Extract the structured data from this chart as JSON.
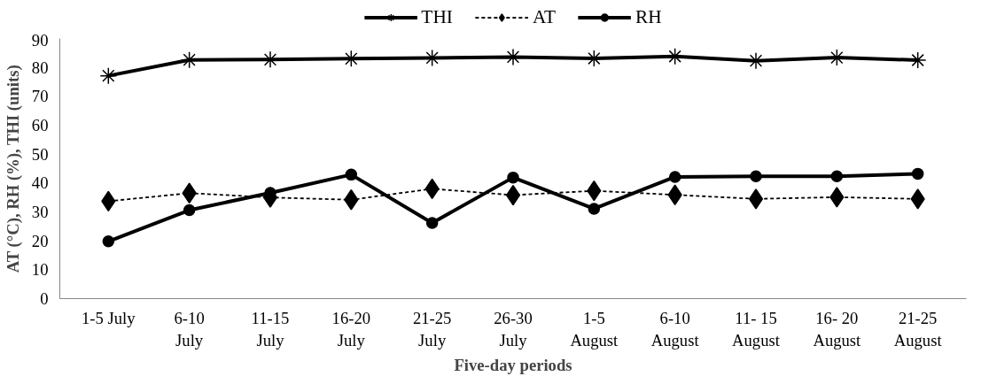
{
  "chart_data": {
    "type": "line",
    "xlabel": "Five-day periods",
    "ylabel": "AT (°C), RH (%), THI (units)",
    "categories": [
      "1-5 July",
      "6-10\nJuly",
      "11-15\nJuly",
      "16-20\nJuly",
      "21-25\nJuly",
      "26-30\nJuly",
      "1-5\nAugust",
      "6-10\nAugust",
      "11- 15\nAugust",
      "16- 20\nAugust",
      "21-25\nAugust"
    ],
    "ylim": [
      0,
      90
    ],
    "yticks": [
      0,
      10,
      20,
      30,
      40,
      50,
      60,
      70,
      80,
      90
    ],
    "grid": false,
    "legend": "top",
    "series": [
      {
        "name": "THI",
        "color": "#000000",
        "marker": "cross",
        "line_style": "solid",
        "values": [
          77.1,
          82.6,
          82.7,
          83.0,
          83.3,
          83.6,
          83.1,
          83.8,
          82.3,
          83.4,
          82.5
        ]
      },
      {
        "name": "AT",
        "color": "#000000",
        "marker": "diamond",
        "line_style": "dashed",
        "values": [
          33.7,
          36.5,
          35.0,
          34.2,
          38.0,
          35.8,
          37.3,
          35.9,
          34.5,
          35.1,
          34.5
        ]
      },
      {
        "name": "RH",
        "color": "#000000",
        "marker": "circle",
        "line_style": "solid",
        "values": [
          19.8,
          30.6,
          36.6,
          42.9,
          26.2,
          41.9,
          31.1,
          42.1,
          42.3,
          42.3,
          43.2
        ]
      }
    ]
  }
}
